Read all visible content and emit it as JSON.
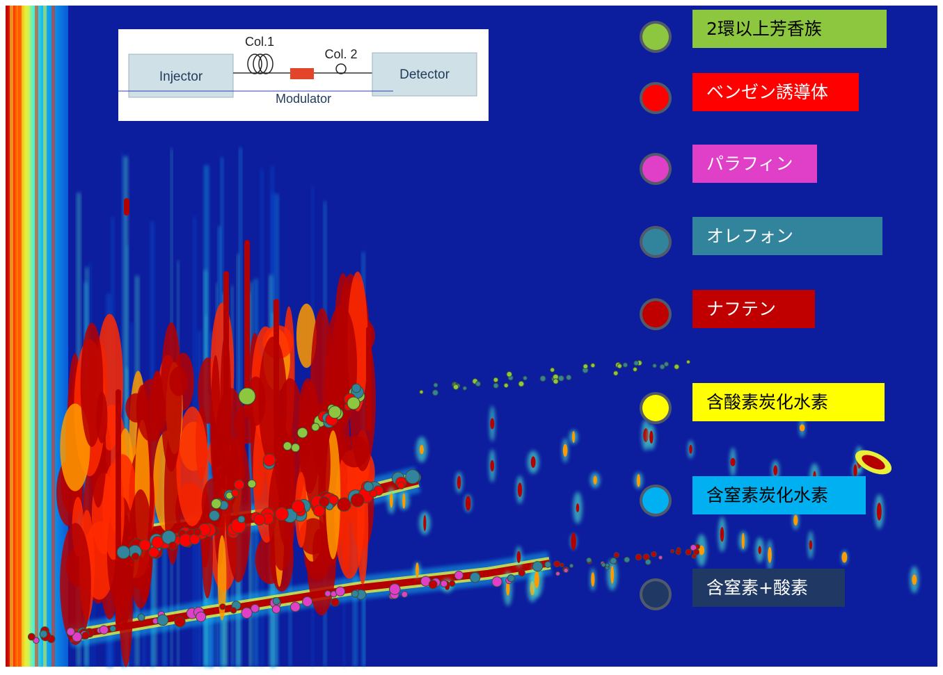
{
  "schematic": {
    "injector": "Injector",
    "col1": "Col.1",
    "col2": "Col. 2",
    "modulator": "Modulator",
    "detector": "Detector"
  },
  "legend": [
    {
      "label": "2環以上芳香族",
      "marker": "#8dc63f",
      "box": "#8dc63f",
      "text": "#000000"
    },
    {
      "label": "ベンゼン誘導体",
      "marker": "#ff0000",
      "box": "#ff0000",
      "text": "#ffffff"
    },
    {
      "label": "パラフィン",
      "marker": "#e040c8",
      "box": "#e040c8",
      "text": "#ffffff"
    },
    {
      "label": "オレフォン",
      "marker": "#31849b",
      "box": "#31849b",
      "text": "#ffffff"
    },
    {
      "label": "ナフテン",
      "marker": "#c00000",
      "box": "#c00000",
      "text": "#ffffff"
    },
    {
      "label": "含酸素炭化水素",
      "marker": "#ffff00",
      "box": "#ffff00",
      "text": "#000000"
    },
    {
      "label": "含窒素炭化水素",
      "marker": "#00b0f0",
      "box": "#00b0f0",
      "text": "#000000"
    },
    {
      "label": "含窒素+酸素",
      "marker": "#1f3864",
      "box": "#1f3864",
      "text": "#ffffff"
    }
  ],
  "chart_data": {
    "type": "heatmap",
    "description_source": "GCxGC contour plot with classified peak markers",
    "background": "#0c1d9e",
    "colormap": [
      "#0c1d9e",
      "#0a5bd8",
      "#12b5f0",
      "#4ff0d0",
      "#e8f03a",
      "#ff9a00",
      "#ff2a00",
      "#b50000"
    ],
    "grid": false,
    "xlabel": "",
    "ylabel": "",
    "series": [
      {
        "name": "2環以上芳香族",
        "color": "#8dc63f"
      },
      {
        "name": "ベンゼン誘導体",
        "color": "#ff0000"
      },
      {
        "name": "パラフィン",
        "color": "#e040c8"
      },
      {
        "name": "オレフォン",
        "color": "#31849b"
      },
      {
        "name": "ナフテン",
        "color": "#c00000"
      },
      {
        "name": "含酸素炭化水素",
        "color": "#ffff00"
      },
      {
        "name": "含窒素炭化水素",
        "color": "#00b0f0"
      },
      {
        "name": "含窒素+酸素",
        "color": "#1f3864"
      }
    ]
  }
}
